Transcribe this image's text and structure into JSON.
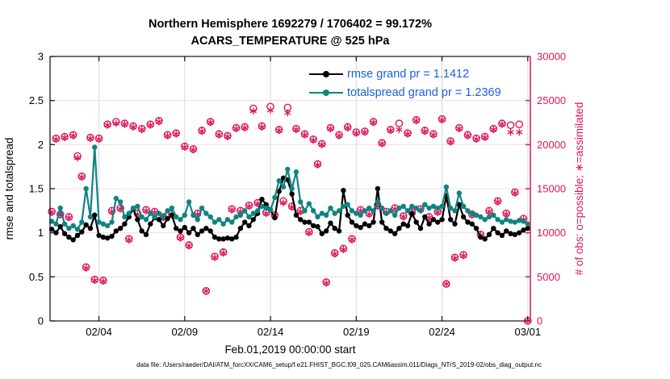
{
  "title": {
    "line1": "Northern Hemisphere 1692279 / 1706402 = 99.172%",
    "line2": "ACARS_TEMPERATURE @ 525 hPa"
  },
  "legend": [
    {
      "name": "rmse",
      "label": "rmse grand pr = 1.1412",
      "color": "#000000"
    },
    {
      "name": "totalspread",
      "label": "totalspread grand pr = 1.2369",
      "color": "#0e8482"
    }
  ],
  "colors": {
    "rmse": "#000000",
    "totalspread": "#0e8482",
    "obs": "#dd1659",
    "legend_text": "#1a5fe0",
    "h_grid": "#f7d7e2",
    "v_grid": "#d9d9d9",
    "axis_black": "#1a1a1a"
  },
  "axes": {
    "left": {
      "label": "rmse and totalspread",
      "range": [
        0,
        3
      ],
      "ticks": [
        0,
        0.5,
        1,
        1.5,
        2,
        2.5,
        3
      ],
      "tick_labels": [
        "0",
        "0.5",
        "1",
        "1.5",
        "2",
        "2.5",
        "3"
      ]
    },
    "right": {
      "label": "# of obs: o=possible; ∗=assimilated",
      "range": [
        0,
        30000
      ],
      "ticks": [
        0,
        5000,
        10000,
        15000,
        20000,
        25000,
        30000
      ],
      "tick_labels": [
        "0",
        "5000",
        "10000",
        "15000",
        "20000",
        "25000",
        "30000"
      ]
    },
    "x": {
      "label": "Feb.01,2019 00:00:00 start",
      "range_days": [
        0.15,
        28.15
      ],
      "tick_days": [
        3,
        8,
        13,
        18,
        23,
        28
      ],
      "tick_labels": [
        "02/04",
        "02/09",
        "02/14",
        "02/19",
        "02/24",
        "03/01"
      ]
    }
  },
  "footer": {
    "data_file": "data file: /Users/raeder/DAI/ATM_forcXX/CAM6_setup/f.e21.FHIST_BGC.f09_025.CAM6assim.011/Diags_NTrS_2019-02/obs_diag_output.nc"
  },
  "chart_data": {
    "type": "line",
    "x_start_day": 0.25,
    "x_step_day": 0.25,
    "n_points": 112,
    "series": [
      {
        "name": "rmse",
        "color": "#000000",
        "values": [
          1.04,
          1.0,
          1.07,
          0.99,
          0.95,
          0.92,
          0.97,
          1.01,
          1.09,
          1.05,
          1.2,
          0.97,
          0.95,
          0.94,
          0.96,
          1.02,
          1.05,
          1.1,
          1.18,
          1.27,
          1.15,
          1.02,
          0.98,
          1.1,
          1.17,
          1.15,
          1.08,
          1.16,
          1.2,
          1.05,
          1.02,
          1.06,
          1.0,
          1.05,
          0.98,
          1.02,
          1.05,
          1.02,
          0.95,
          0.93,
          0.93,
          0.94,
          0.93,
          0.95,
          1.05,
          1.12,
          1.08,
          1.15,
          1.22,
          1.38,
          1.32,
          1.26,
          1.17,
          1.47,
          1.62,
          1.6,
          1.44,
          1.2,
          1.15,
          1.12,
          1.12,
          1.08,
          1.07,
          0.99,
          1.02,
          1.11,
          1.05,
          1.02,
          1.48,
          1.2,
          1.12,
          1.08,
          1.06,
          1.1,
          1.08,
          1.12,
          1.5,
          1.12,
          1.05,
          1.02,
          0.99,
          1.05,
          1.1,
          1.08,
          1.22,
          1.12,
          1.05,
          1.18,
          1.1,
          1.15,
          1.12,
          1.15,
          1.42,
          1.15,
          1.1,
          1.32,
          1.18,
          1.12,
          1.1,
          1.05,
          0.95,
          0.93,
          0.98,
          1.05,
          1.0,
          0.97,
          1.02,
          0.99,
          0.98,
          1.0,
          1.03,
          1.05
        ]
      },
      {
        "name": "totalspread",
        "color": "#0e8482",
        "values": [
          1.13,
          1.1,
          1.28,
          1.1,
          1.05,
          1.08,
          1.04,
          1.12,
          1.5,
          1.18,
          1.97,
          1.12,
          1.1,
          1.08,
          1.12,
          1.39,
          1.35,
          1.18,
          1.22,
          1.28,
          1.3,
          1.18,
          1.15,
          1.22,
          1.18,
          1.22,
          1.18,
          1.25,
          1.28,
          1.18,
          1.15,
          1.2,
          1.35,
          1.2,
          1.15,
          1.28,
          1.22,
          1.18,
          1.12,
          1.15,
          1.1,
          1.15,
          1.12,
          1.18,
          1.2,
          1.25,
          1.18,
          1.22,
          1.25,
          1.3,
          1.28,
          1.26,
          1.4,
          1.59,
          1.52,
          1.72,
          1.5,
          1.69,
          1.35,
          1.25,
          1.33,
          1.25,
          1.18,
          1.22,
          1.2,
          1.28,
          1.22,
          1.25,
          1.3,
          1.32,
          1.25,
          1.22,
          1.2,
          1.25,
          1.28,
          1.25,
          1.35,
          1.28,
          1.22,
          1.25,
          1.2,
          1.28,
          1.3,
          1.25,
          1.3,
          1.28,
          1.25,
          1.32,
          1.28,
          1.3,
          1.28,
          1.3,
          1.52,
          1.28,
          1.25,
          1.45,
          1.3,
          1.25,
          1.22,
          1.2,
          1.18,
          1.15,
          1.18,
          1.2,
          1.15,
          1.12,
          1.15,
          1.13,
          1.12,
          1.14,
          1.13,
          1.1
        ]
      }
    ],
    "obs_counts": {
      "axis": "right",
      "possible": [
        12400,
        20700,
        12100,
        20900,
        11800,
        21100,
        18700,
        16400,
        6100,
        20800,
        4700,
        20700,
        4600,
        22300,
        12500,
        22600,
        12800,
        22400,
        9300,
        22100,
        12200,
        21800,
        12600,
        22300,
        12400,
        22700,
        11800,
        21100,
        12100,
        21300,
        9500,
        19800,
        8600,
        19500,
        12200,
        21600,
        3400,
        22600,
        7300,
        21200,
        7800,
        21000,
        12700,
        21900,
        12500,
        22000,
        13100,
        24100,
        13400,
        22100,
        12300,
        24300,
        12000,
        21700,
        13600,
        24200,
        13000,
        21800,
        12500,
        21200,
        10100,
        20600,
        17800,
        20100,
        4400,
        21900,
        7700,
        21100,
        8200,
        22000,
        9300,
        21400,
        12600,
        21500,
        12200,
        22600,
        13100,
        20200,
        12400,
        21700,
        12800,
        22400,
        11900,
        21300,
        12300,
        22800,
        12700,
        21600,
        11800,
        21200,
        12400,
        22900,
        4200,
        20400,
        7200,
        21900,
        7500,
        21100,
        12100,
        20700,
        9800,
        20900,
        12500,
        21800,
        13600,
        22400,
        12200,
        22200,
        14600,
        22300,
        11600,
        0
      ],
      "assimilated": [
        12300,
        20600,
        12000,
        20800,
        11700,
        21000,
        18500,
        16300,
        6000,
        20700,
        4600,
        20600,
        4500,
        22200,
        12400,
        22400,
        12700,
        22300,
        9200,
        22000,
        12100,
        21700,
        12500,
        22200,
        12300,
        22600,
        11700,
        21000,
        12000,
        21200,
        9400,
        19700,
        8500,
        19400,
        12100,
        21500,
        3400,
        22500,
        7200,
        21100,
        7700,
        20900,
        12600,
        21800,
        12400,
        21900,
        13000,
        23800,
        13300,
        22000,
        12200,
        23900,
        11900,
        21600,
        13400,
        23600,
        12900,
        21700,
        12400,
        21100,
        10000,
        20500,
        17700,
        20000,
        4300,
        21800,
        7600,
        21000,
        8100,
        21900,
        9200,
        21300,
        12500,
        21400,
        12100,
        22500,
        13000,
        20100,
        12300,
        21600,
        12700,
        21700,
        11800,
        21200,
        12200,
        22700,
        12600,
        21500,
        11700,
        21100,
        12300,
        22800,
        4200,
        20300,
        7100,
        21800,
        7400,
        21000,
        12000,
        20600,
        9700,
        20800,
        12400,
        21700,
        13500,
        22300,
        12100,
        21400,
        14500,
        21400,
        11500,
        0
      ]
    }
  }
}
